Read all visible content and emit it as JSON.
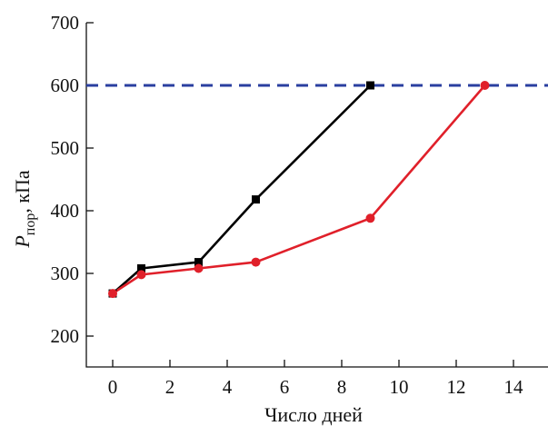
{
  "chart_data": {
    "type": "line",
    "title": "",
    "xlabel": "Число дней",
    "ylabel_main": "P",
    "ylabel_sub": "пор",
    "ylabel_unit": ", кПа",
    "xlim": [
      -1,
      15
    ],
    "ylim": [
      150,
      700
    ],
    "xticks": [
      0,
      2,
      4,
      6,
      8,
      10,
      12,
      14
    ],
    "yticks": [
      200,
      300,
      400,
      500,
      600,
      700
    ],
    "grid": false,
    "series": [
      {
        "color": "#000000",
        "marker": "square",
        "x": [
          0,
          1,
          3,
          5,
          9
        ],
        "y": [
          268,
          308,
          318,
          418,
          600
        ]
      },
      {
        "color": "#e0202a",
        "marker": "circle",
        "x": [
          0,
          1,
          3,
          5,
          9,
          13
        ],
        "y": [
          268,
          298,
          308,
          318,
          388,
          600
        ]
      }
    ],
    "reference_line": {
      "y": 600,
      "color": "#2a3fa0",
      "style": "dashed"
    }
  }
}
